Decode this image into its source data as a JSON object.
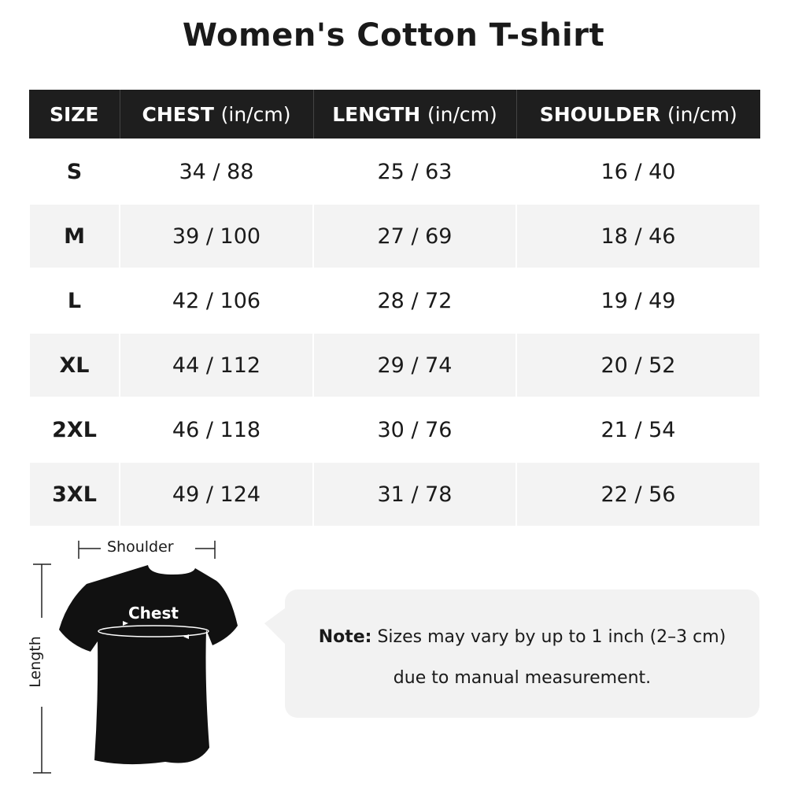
{
  "title": "Women's Cotton T-shirt",
  "table": {
    "headers": [
      {
        "label": "SIZE",
        "unit": ""
      },
      {
        "label": "CHEST",
        "unit": "(in/cm)"
      },
      {
        "label": "LENGTH",
        "unit": "(in/cm)"
      },
      {
        "label": "SHOULDER",
        "unit": "(in/cm)"
      }
    ],
    "rows": [
      [
        "S",
        "34 / 88",
        "25 / 63",
        "16 / 40"
      ],
      [
        "M",
        "39 / 100",
        "27 / 69",
        "18 / 46"
      ],
      [
        "L",
        "42 / 106",
        "28 / 72",
        "19 / 49"
      ],
      [
        "XL",
        "44 / 112",
        "29 / 74",
        "20 / 52"
      ],
      [
        "2XL",
        "46 / 118",
        "30 / 76",
        "21 / 54"
      ],
      [
        "3XL",
        "49 / 124",
        "31 / 78",
        "22 / 56"
      ]
    ]
  },
  "diagram": {
    "shoulder_label": "Shoulder",
    "chest_label": "Chest",
    "length_label": "Length",
    "shirt_color": "#111111"
  },
  "note": {
    "prefix": "Note:",
    "line1": "Sizes may vary by up to 1 inch (2–3 cm)",
    "line2": "due to manual measurement."
  }
}
